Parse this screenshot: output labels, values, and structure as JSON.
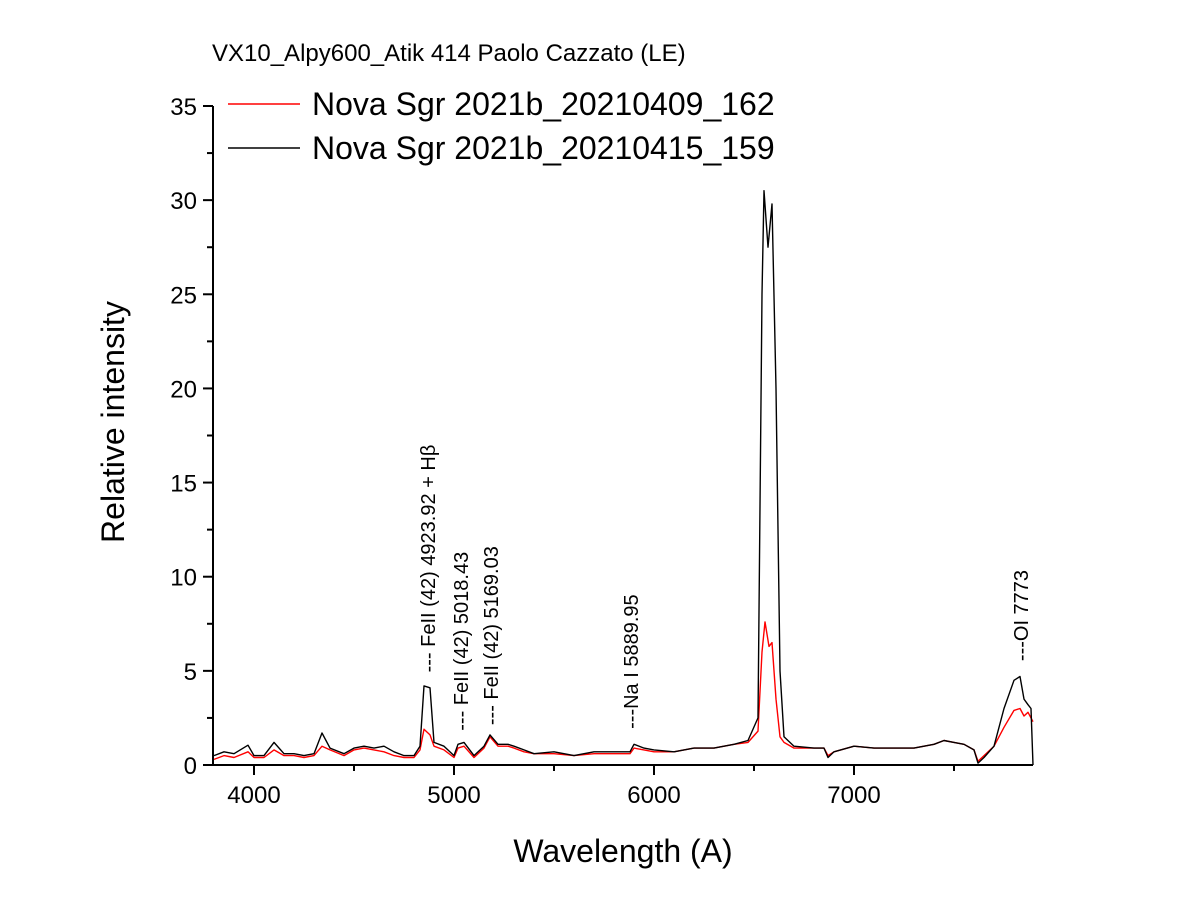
{
  "chart_data": {
    "type": "line",
    "title": "VX10_Alpy600_Atik 414 Paolo Cazzato (LE)",
    "xlabel": "Wavelength (A)",
    "ylabel": "Relative intensity",
    "xlim": [
      3795,
      7895
    ],
    "ylim": [
      0,
      35
    ],
    "xticks": [
      4000,
      5000,
      6000,
      7000
    ],
    "yticks": [
      0,
      5,
      10,
      15,
      20,
      25,
      30,
      35
    ],
    "grid": false,
    "legend_position": "top-left",
    "series": [
      {
        "name": "Nova Sgr 2021b_20210409_162",
        "color": "#ff0000",
        "x": [
          3800,
          3850,
          3900,
          3970,
          4000,
          4050,
          4100,
          4150,
          4200,
          4250,
          4300,
          4340,
          4380,
          4450,
          4500,
          4550,
          4600,
          4650,
          4700,
          4750,
          4800,
          4830,
          4850,
          4880,
          4900,
          4950,
          5000,
          5020,
          5050,
          5100,
          5150,
          5180,
          5220,
          5270,
          5300,
          5350,
          5400,
          5500,
          5600,
          5700,
          5800,
          5880,
          5900,
          5950,
          6000,
          6100,
          6200,
          6300,
          6400,
          6470,
          6520,
          6540,
          6555,
          6575,
          6590,
          6610,
          6630,
          6650,
          6700,
          6800,
          6850,
          6870,
          6900,
          7000,
          7100,
          7200,
          7300,
          7400,
          7450,
          7500,
          7550,
          7600,
          7620,
          7650,
          7700,
          7750,
          7800,
          7830,
          7850,
          7870,
          7895
        ],
        "y": [
          0.3,
          0.5,
          0.4,
          0.7,
          0.4,
          0.4,
          0.8,
          0.5,
          0.5,
          0.4,
          0.5,
          1.0,
          0.8,
          0.5,
          0.8,
          0.9,
          0.8,
          0.7,
          0.5,
          0.4,
          0.4,
          0.8,
          1.9,
          1.6,
          1.0,
          0.8,
          0.4,
          0.9,
          1.0,
          0.4,
          0.9,
          1.5,
          1.0,
          1.0,
          0.9,
          0.7,
          0.6,
          0.6,
          0.5,
          0.6,
          0.6,
          0.6,
          0.9,
          0.8,
          0.7,
          0.7,
          0.9,
          0.9,
          1.1,
          1.2,
          1.8,
          6.0,
          7.6,
          6.3,
          6.5,
          3.5,
          1.5,
          1.2,
          0.9,
          0.9,
          0.9,
          0.5,
          0.7,
          1.0,
          0.9,
          0.9,
          0.9,
          1.1,
          1.3,
          1.2,
          1.1,
          0.8,
          0.2,
          0.5,
          1.0,
          2.0,
          2.9,
          3.0,
          2.6,
          2.8,
          2.3
        ]
      },
      {
        "name": "Nova Sgr 2021b_20210415_159",
        "color": "#000000",
        "x": [
          3800,
          3850,
          3900,
          3970,
          4000,
          4050,
          4100,
          4150,
          4200,
          4250,
          4300,
          4340,
          4380,
          4450,
          4500,
          4550,
          4600,
          4650,
          4700,
          4750,
          4800,
          4830,
          4850,
          4880,
          4900,
          4950,
          5000,
          5020,
          5050,
          5100,
          5150,
          5180,
          5220,
          5270,
          5300,
          5350,
          5400,
          5500,
          5600,
          5700,
          5800,
          5880,
          5900,
          5950,
          6000,
          6100,
          6200,
          6300,
          6400,
          6470,
          6520,
          6540,
          6550,
          6570,
          6590,
          6610,
          6630,
          6650,
          6700,
          6800,
          6850,
          6870,
          6900,
          7000,
          7100,
          7200,
          7300,
          7400,
          7450,
          7500,
          7550,
          7600,
          7620,
          7650,
          7700,
          7750,
          7800,
          7830,
          7850,
          7870,
          7885,
          7895
        ],
        "y": [
          0.5,
          0.7,
          0.6,
          1.05,
          0.5,
          0.5,
          1.2,
          0.6,
          0.6,
          0.5,
          0.6,
          1.7,
          0.9,
          0.6,
          0.9,
          1.0,
          0.9,
          1.0,
          0.7,
          0.5,
          0.5,
          1.0,
          4.2,
          4.1,
          1.2,
          1.0,
          0.5,
          1.1,
          1.2,
          0.5,
          1.0,
          1.6,
          1.1,
          1.1,
          1.0,
          0.8,
          0.6,
          0.7,
          0.5,
          0.7,
          0.7,
          0.7,
          1.1,
          0.9,
          0.8,
          0.7,
          0.9,
          0.9,
          1.1,
          1.3,
          2.5,
          25,
          30.5,
          27.5,
          29.8,
          20,
          5,
          1.5,
          1.0,
          0.9,
          0.9,
          0.4,
          0.7,
          1.0,
          0.9,
          0.9,
          0.9,
          1.1,
          1.3,
          1.2,
          1.1,
          0.8,
          0.1,
          0.4,
          1.0,
          3.0,
          4.5,
          4.7,
          3.5,
          3.2,
          3.0,
          0
        ]
      }
    ],
    "annotations": [
      {
        "text": "--- FeII (42) 4923.92 + Hβ",
        "x": 4870,
        "y": 4.6
      },
      {
        "text": "--- FeII (42) 5018.43",
        "x": 5035,
        "y": 1.5
      },
      {
        "text": "--- FeII (42) 5169.03",
        "x": 5185,
        "y": 1.8
      },
      {
        "text": "---Na I 5889.95",
        "x": 5885,
        "y": 1.6
      },
      {
        "text": "---OI 7773",
        "x": 7835,
        "y": 5.2
      }
    ]
  }
}
